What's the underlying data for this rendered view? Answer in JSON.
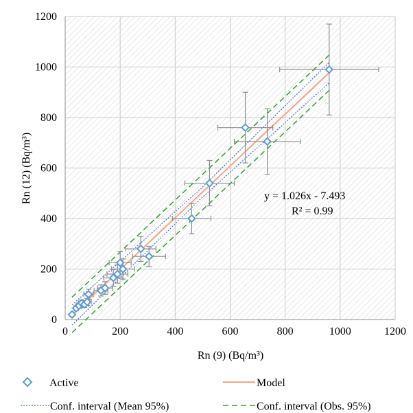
{
  "chart_data": {
    "type": "scatter",
    "xlabel": "Rn (9) (Bq/m³)",
    "ylabel": "Rn (12) (Bq/m³)",
    "xlim": [
      0,
      1200
    ],
    "ylim": [
      0,
      1200
    ],
    "x_ticks": [
      0,
      200,
      400,
      600,
      800,
      1000,
      1200
    ],
    "y_ticks": [
      0,
      200,
      400,
      600,
      800,
      1000,
      1200
    ],
    "grid": true,
    "background": "hatched",
    "series": [
      {
        "name": "Active",
        "marker": "diamond",
        "color": "#5b9bd5",
        "points": [
          {
            "x": 25,
            "y": 20,
            "xerr": 5,
            "yerr": 5
          },
          {
            "x": 40,
            "y": 45,
            "xerr": 8,
            "yerr": 8
          },
          {
            "x": 50,
            "y": 55,
            "xerr": 10,
            "yerr": 10
          },
          {
            "x": 60,
            "y": 65,
            "xerr": 12,
            "yerr": 12
          },
          {
            "x": 70,
            "y": 60,
            "xerr": 14,
            "yerr": 12
          },
          {
            "x": 80,
            "y": 70,
            "xerr": 15,
            "yerr": 14
          },
          {
            "x": 85,
            "y": 100,
            "xerr": 17,
            "yerr": 20
          },
          {
            "x": 130,
            "y": 115,
            "xerr": 25,
            "yerr": 22
          },
          {
            "x": 145,
            "y": 125,
            "xerr": 28,
            "yerr": 25
          },
          {
            "x": 175,
            "y": 165,
            "xerr": 35,
            "yerr": 33
          },
          {
            "x": 190,
            "y": 180,
            "xerr": 38,
            "yerr": 36
          },
          {
            "x": 200,
            "y": 225,
            "xerr": 40,
            "yerr": 45
          },
          {
            "x": 210,
            "y": 200,
            "xerr": 42,
            "yerr": 40
          },
          {
            "x": 275,
            "y": 280,
            "xerr": 55,
            "yerr": 50
          },
          {
            "x": 305,
            "y": 250,
            "xerr": 60,
            "yerr": 40
          },
          {
            "x": 460,
            "y": 400,
            "xerr": 70,
            "yerr": 60
          },
          {
            "x": 525,
            "y": 540,
            "xerr": 90,
            "yerr": 90
          },
          {
            "x": 655,
            "y": 760,
            "xerr": 100,
            "yerr": 140
          },
          {
            "x": 735,
            "y": 705,
            "xerr": 120,
            "yerr": 130
          },
          {
            "x": 960,
            "y": 990,
            "xerr": 180,
            "yerr": 180
          }
        ]
      },
      {
        "name": "Model",
        "line": "solid",
        "color": "#f4a582",
        "slope": 1.026,
        "intercept": -7.493,
        "x_range": [
          25,
          960
        ]
      },
      {
        "name": "Conf. interval (Mean 95%)",
        "line": "dotted",
        "color": "#4472c4",
        "offset_min": 20,
        "offset_max": 40
      },
      {
        "name": "Conf. interval (Obs. 95%)",
        "line": "dashed",
        "color": "#2ca02c",
        "offset": 70
      }
    ],
    "equation": "y = 1.026x - 7.493",
    "r_squared": "R² = 0.99",
    "legend": {
      "placement": "bottom",
      "active": "Active",
      "model": "Model",
      "mean_ci": "Conf. interval (Mean 95%)",
      "obs_ci": "Conf. interval (Obs. 95%)"
    }
  }
}
